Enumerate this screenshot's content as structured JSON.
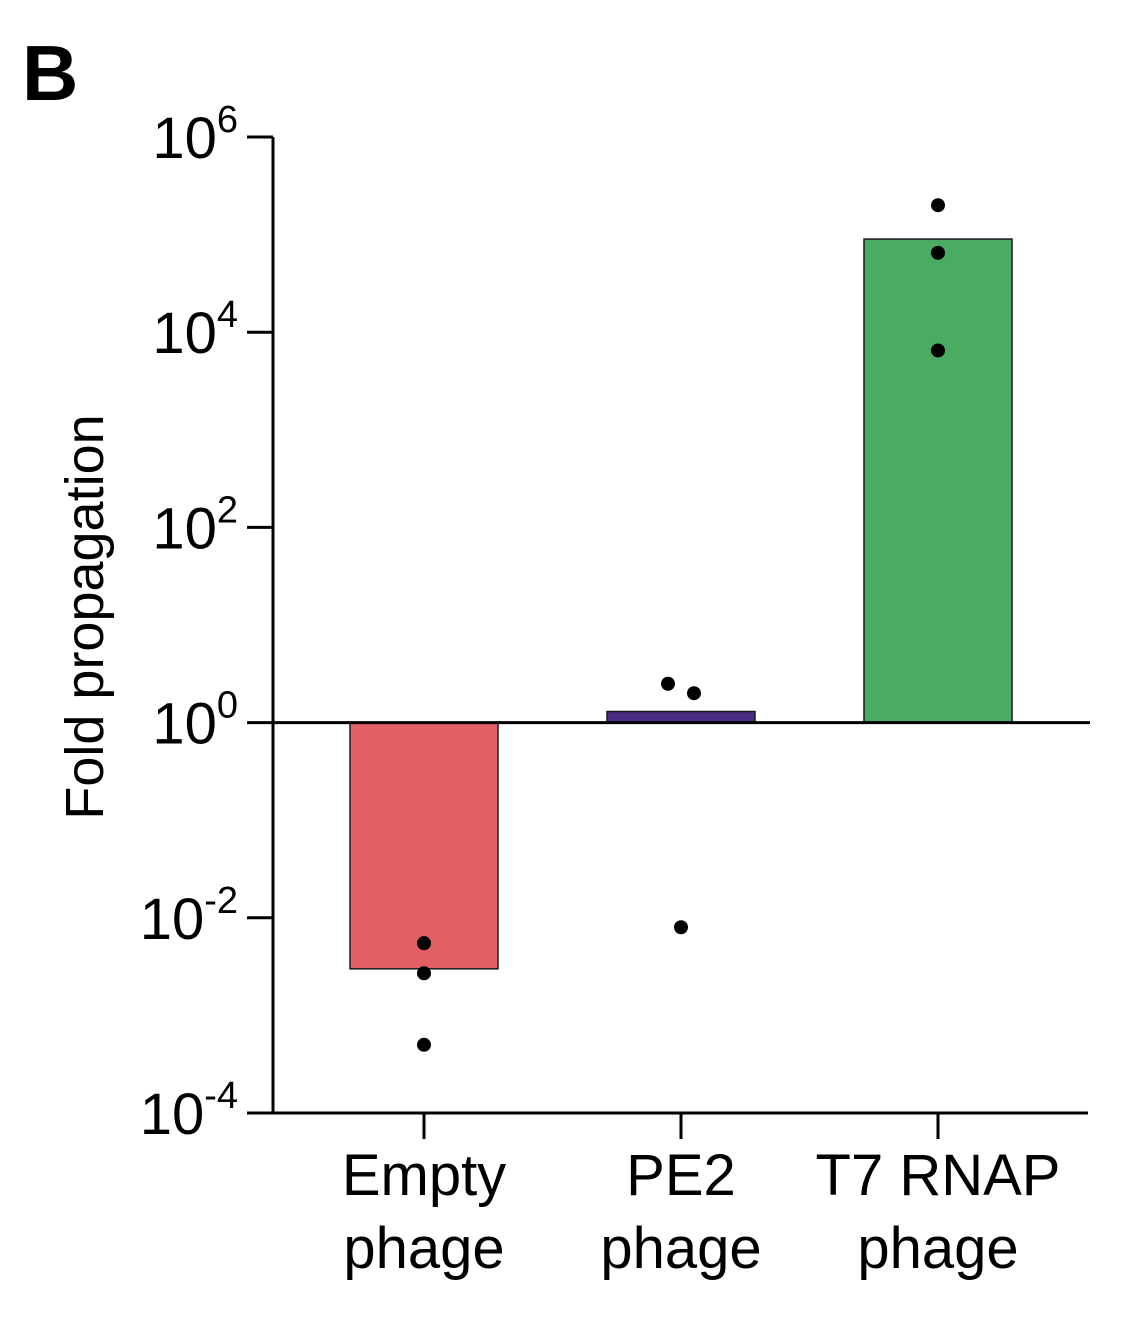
{
  "panel_label": "B",
  "colors": {
    "axis": "#000000",
    "points": "#000000",
    "bar_stroke": "#1a1a1a"
  },
  "chart_data": {
    "type": "bar",
    "ylabel": "Fold propagation",
    "yscale": "log",
    "ylim": [
      0.0001,
      1000000
    ],
    "baseline": 1,
    "yticks": [
      {
        "base": "10",
        "exp": "-4",
        "value": 0.0001
      },
      {
        "base": "10",
        "exp": "-2",
        "value": 0.01
      },
      {
        "base": "10",
        "exp": "0",
        "value": 1
      },
      {
        "base": "10",
        "exp": "2",
        "value": 100
      },
      {
        "base": "10",
        "exp": "4",
        "value": 10000
      },
      {
        "base": "10",
        "exp": "6",
        "value": 1000000
      }
    ],
    "categories": [
      {
        "line1": "Empty",
        "line2": "phage",
        "value": 0.003,
        "color": "#e35f64",
        "points": [
          0.0055,
          0.0027,
          0.0005
        ],
        "jitter": [
          0,
          0,
          0
        ]
      },
      {
        "line1": "PE2",
        "line2": "phage",
        "value": 1.3,
        "color": "#4b2e83",
        "points": [
          2.5,
          2.0,
          0.008
        ],
        "jitter": [
          -13,
          13,
          0
        ]
      },
      {
        "line1": "T7 RNAP",
        "line2": "phage",
        "value": 90000,
        "color": "#4aab62",
        "points": [
          200000,
          65000,
          6500
        ],
        "jitter": [
          0,
          0,
          0
        ]
      }
    ]
  }
}
